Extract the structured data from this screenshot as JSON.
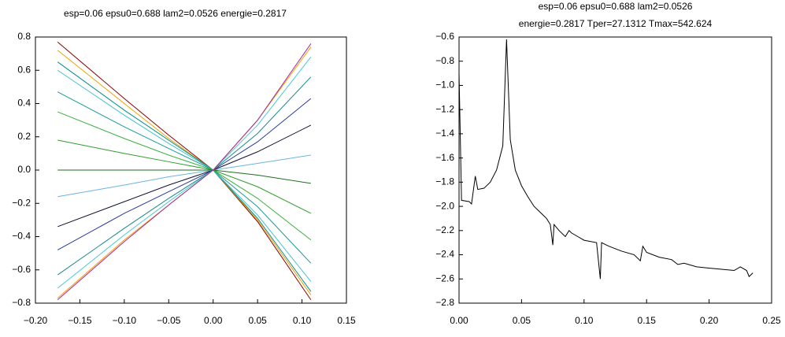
{
  "chart_data": [
    {
      "type": "line",
      "title": "esp=0.06 epsu0=0.688 lam2=0.0526 energie=0.2817",
      "x": [
        -0.175,
        -0.1,
        -0.05,
        0,
        0.05,
        0.11
      ],
      "series": [
        {
          "color": "#8b0000",
          "values": [
            0.77,
            0.43,
            0.21,
            0,
            -0.31,
            -0.78
          ]
        },
        {
          "color": "#f0a000",
          "values": [
            0.72,
            0.4,
            0.19,
            0,
            -0.3,
            -0.75
          ]
        },
        {
          "color": "#008b8b",
          "values": [
            0.65,
            0.36,
            0.18,
            0,
            -0.29,
            -0.73
          ]
        },
        {
          "color": "#40c0d0",
          "values": [
            0.6,
            0.33,
            0.16,
            0,
            -0.27,
            -0.67
          ]
        },
        {
          "color": "#1a9a9a",
          "values": [
            0.47,
            0.26,
            0.13,
            0,
            -0.22,
            -0.56
          ]
        },
        {
          "color": "#3cb043",
          "values": [
            0.35,
            0.19,
            0.09,
            0,
            -0.17,
            -0.42
          ]
        },
        {
          "color": "#2e9e2e",
          "values": [
            0.18,
            0.1,
            0.05,
            0,
            -0.1,
            -0.26
          ]
        },
        {
          "color": "#1f6f1f",
          "values": [
            0.0,
            0.0,
            0.0,
            0,
            -0.03,
            -0.08
          ]
        },
        {
          "color": "#6ab4e0",
          "values": [
            -0.16,
            -0.09,
            -0.04,
            0,
            0.04,
            0.09
          ]
        },
        {
          "color": "#111133",
          "values": [
            -0.34,
            -0.19,
            -0.09,
            0,
            0.11,
            0.27
          ]
        },
        {
          "color": "#2a3a9a",
          "values": [
            -0.48,
            -0.26,
            -0.13,
            0,
            0.17,
            0.43
          ]
        },
        {
          "color": "#1a8a8a",
          "values": [
            -0.63,
            -0.35,
            -0.17,
            0,
            0.22,
            0.56
          ]
        },
        {
          "color": "#48c8d8",
          "values": [
            -0.71,
            -0.39,
            -0.19,
            0,
            0.27,
            0.68
          ]
        },
        {
          "color": "#ff9900",
          "values": [
            -0.77,
            -0.42,
            -0.21,
            0,
            0.3,
            0.74
          ]
        },
        {
          "color": "#9b30a0",
          "values": [
            -0.78,
            -0.43,
            -0.21,
            0,
            0.3,
            0.76
          ]
        }
      ],
      "xlim": [
        -0.2,
        0.15
      ],
      "xticks": [
        {
          "value": -0.2,
          "label": "−0.20"
        },
        {
          "value": -0.15,
          "label": "−0.15"
        },
        {
          "value": -0.1,
          "label": "−0.10"
        },
        {
          "value": -0.05,
          "label": "−0.05"
        },
        {
          "value": 0,
          "label": "0.00"
        },
        0.05,
        {
          "value": 0.1,
          "label": "0.10"
        },
        0.15
      ],
      "ylim": [
        -0.8,
        0.8
      ],
      "yticks": [
        {
          "value": -0.8,
          "label": "−0.8"
        },
        {
          "value": -0.6,
          "label": "−0.6"
        },
        {
          "value": -0.4,
          "label": "−0.4"
        },
        {
          "value": -0.2,
          "label": "−0.2"
        },
        {
          "value": 0,
          "label": "0.0"
        },
        0.2,
        0.4,
        0.6,
        0.8
      ]
    },
    {
      "type": "line",
      "title": [
        "esp=0.06 epsu0=0.688 lam2=0.0526",
        "energie=0.2817 Tper=27.1312 Tmax=542.624"
      ],
      "x": [
        0,
        0.002,
        0.008,
        0.01,
        0.013,
        0.015,
        0.02,
        0.025,
        0.03,
        0.035,
        0.038,
        0.041,
        0.045,
        0.05,
        0.055,
        0.06,
        0.065,
        0.07,
        0.073,
        0.075,
        0.076,
        0.08,
        0.085,
        0.088,
        0.09,
        0.095,
        0.1,
        0.11,
        0.113,
        0.114,
        0.12,
        0.13,
        0.14,
        0.145,
        0.147,
        0.15,
        0.16,
        0.17,
        0.175,
        0.18,
        0.19,
        0.2,
        0.21,
        0.22,
        0.225,
        0.23,
        0.232,
        0.235
      ],
      "series": [
        {
          "color": "#000000",
          "values": [
            -0.9,
            -1.95,
            -1.96,
            -1.98,
            -1.75,
            -1.86,
            -1.85,
            -1.8,
            -1.7,
            -1.5,
            -0.62,
            -1.45,
            -1.7,
            -1.83,
            -1.92,
            -2.0,
            -2.05,
            -2.1,
            -2.15,
            -2.32,
            -2.15,
            -2.2,
            -2.25,
            -2.2,
            -2.22,
            -2.25,
            -2.28,
            -2.3,
            -2.6,
            -2.3,
            -2.33,
            -2.37,
            -2.4,
            -2.45,
            -2.33,
            -2.38,
            -2.42,
            -2.44,
            -2.48,
            -2.47,
            -2.5,
            -2.51,
            -2.52,
            -2.53,
            -2.5,
            -2.53,
            -2.58,
            -2.55
          ]
        }
      ],
      "xlim": [
        0,
        0.25
      ],
      "xticks": [
        {
          "value": 0,
          "label": "0.00"
        },
        0.05,
        {
          "value": 0.1,
          "label": "0.10"
        },
        0.15,
        {
          "value": 0.2,
          "label": "0.20"
        },
        0.25
      ],
      "ylim": [
        -2.8,
        -0.6
      ],
      "yticks": [
        {
          "value": -2.8,
          "label": "−2.8"
        },
        {
          "value": -2.6,
          "label": "−2.6"
        },
        {
          "value": -2.4,
          "label": "−2.4"
        },
        {
          "value": -2.2,
          "label": "−2.2"
        },
        {
          "value": -2.0,
          "label": "−2.0"
        },
        {
          "value": -1.8,
          "label": "−1.8"
        },
        {
          "value": -1.6,
          "label": "−1.6"
        },
        {
          "value": -1.4,
          "label": "−1.4"
        },
        {
          "value": -1.2,
          "label": "−1.2"
        },
        {
          "value": -1.0,
          "label": "−1.0"
        },
        {
          "value": -0.8,
          "label": "−0.8"
        },
        {
          "value": -0.6,
          "label": "−0.6"
        }
      ]
    }
  ]
}
